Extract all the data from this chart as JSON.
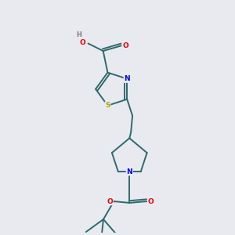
{
  "bg_color": "#e8eaf0",
  "bond_color": "#2d6b6b",
  "atom_colors": {
    "S": "#b8a000",
    "N": "#0000ee",
    "O": "#ee0000",
    "H": "#808080",
    "C": "#2d6b6b"
  }
}
